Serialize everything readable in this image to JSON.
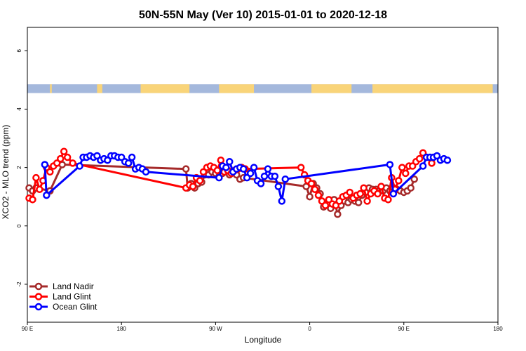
{
  "chart_data": {
    "type": "line",
    "title": "50N-55N May (Ver 10)   2015-01-01 to 2020-12-18",
    "xlabel": "Longitude",
    "ylabel": "XCO2 - MLO trend (ppm)",
    "xlim": [
      -90,
      180
    ],
    "ylim": [
      -3.3,
      6.8
    ],
    "x_ticks": [
      {
        "value": -90,
        "label": "90 E"
      },
      {
        "value": -36,
        "label": "180"
      },
      {
        "value": 18,
        "label": "90 W"
      },
      {
        "value": 72,
        "label": "0"
      },
      {
        "value": 126,
        "label": "90 E"
      },
      {
        "value": 180,
        "label": "180"
      }
    ],
    "y_ticks": [
      {
        "value": -2,
        "label": "-2"
      },
      {
        "value": 0,
        "label": "0"
      },
      {
        "value": 2,
        "label": "2"
      },
      {
        "value": 4,
        "label": "4"
      },
      {
        "value": 6,
        "label": "6"
      }
    ],
    "land_ocean_band": {
      "y_range": [
        4.55,
        4.85
      ],
      "ocean_color": "#a4b8dc",
      "land_color": "#f9d479",
      "land_x": [
        [
          -77,
          -76
        ],
        [
          -50,
          -47
        ],
        [
          -25,
          3
        ],
        [
          20,
          40
        ],
        [
          73,
          96
        ],
        [
          108,
          177
        ]
      ]
    },
    "legend_position": "bottom-left",
    "series": [
      {
        "name": "Land Nadir",
        "color": "#a52a2a",
        "points": [
          [
            -89,
            1.3
          ],
          [
            -87,
            1.2
          ],
          [
            -85,
            1.3
          ],
          [
            -77,
            1.2
          ],
          [
            -70,
            2.1
          ],
          [
            1,
            1.95
          ],
          [
            2,
            1.3
          ],
          [
            4,
            1.45
          ],
          [
            6,
            1.3
          ],
          [
            8,
            1.45
          ],
          [
            10,
            1.5
          ],
          [
            12,
            1.75
          ],
          [
            14,
            1.75
          ],
          [
            16,
            1.85
          ],
          [
            18,
            1.8
          ],
          [
            20,
            1.7
          ],
          [
            22,
            1.8
          ],
          [
            24,
            1.85
          ],
          [
            26,
            1.75
          ],
          [
            28,
            1.85
          ],
          [
            30,
            1.75
          ],
          [
            32,
            1.6
          ],
          [
            34,
            1.65
          ],
          [
            70,
            1.35
          ],
          [
            72,
            1.0
          ],
          [
            74,
            1.45
          ],
          [
            76,
            1.3
          ],
          [
            78,
            1.1
          ],
          [
            80,
            0.65
          ],
          [
            82,
            0.75
          ],
          [
            84,
            0.6
          ],
          [
            86,
            0.9
          ],
          [
            88,
            0.4
          ],
          [
            90,
            0.7
          ],
          [
            92,
            0.85
          ],
          [
            94,
            0.8
          ],
          [
            96,
            0.9
          ],
          [
            98,
            0.85
          ],
          [
            100,
            0.8
          ],
          [
            102,
            1.05
          ],
          [
            104,
            1.15
          ],
          [
            106,
            1.3
          ],
          [
            108,
            1.25
          ],
          [
            110,
            1.25
          ],
          [
            112,
            1.2
          ],
          [
            114,
            1.2
          ],
          [
            116,
            1.3
          ],
          [
            118,
            1.2
          ],
          [
            120,
            1.3
          ],
          [
            122,
            1.25
          ],
          [
            124,
            1.2
          ],
          [
            126,
            1.15
          ],
          [
            128,
            1.2
          ],
          [
            130,
            1.3
          ],
          [
            132,
            1.6
          ]
        ]
      },
      {
        "name": "Land Glint",
        "color": "#ff0000",
        "points": [
          [
            -89,
            0.95
          ],
          [
            -87,
            0.9
          ],
          [
            -85,
            1.65
          ],
          [
            -83,
            1.25
          ],
          [
            -81,
            1.55
          ],
          [
            -79,
            2.0
          ],
          [
            -77,
            1.85
          ],
          [
            -75,
            2.05
          ],
          [
            -73,
            2.15
          ],
          [
            -71,
            2.3
          ],
          [
            -69,
            2.55
          ],
          [
            -67,
            2.35
          ],
          [
            -64,
            2.15
          ],
          [
            1,
            1.3
          ],
          [
            3,
            1.4
          ],
          [
            5,
            1.35
          ],
          [
            7,
            1.65
          ],
          [
            9,
            1.55
          ],
          [
            11,
            1.85
          ],
          [
            13,
            2.0
          ],
          [
            15,
            2.05
          ],
          [
            17,
            2.0
          ],
          [
            19,
            1.9
          ],
          [
            21,
            2.25
          ],
          [
            23,
            1.85
          ],
          [
            25,
            1.9
          ],
          [
            27,
            1.8
          ],
          [
            29,
            1.9
          ],
          [
            31,
            1.95
          ],
          [
            33,
            2.0
          ],
          [
            35,
            1.95
          ],
          [
            67,
            2.0
          ],
          [
            69,
            1.75
          ],
          [
            71,
            1.55
          ],
          [
            73,
            1.45
          ],
          [
            75,
            1.25
          ],
          [
            77,
            1.05
          ],
          [
            79,
            0.85
          ],
          [
            81,
            0.7
          ],
          [
            83,
            0.9
          ],
          [
            85,
            0.75
          ],
          [
            87,
            0.7
          ],
          [
            89,
            0.85
          ],
          [
            91,
            1.0
          ],
          [
            93,
            1.05
          ],
          [
            95,
            1.15
          ],
          [
            97,
            0.95
          ],
          [
            99,
            1.05
          ],
          [
            101,
            1.1
          ],
          [
            103,
            1.3
          ],
          [
            105,
            0.85
          ],
          [
            107,
            1.1
          ],
          [
            109,
            1.2
          ],
          [
            111,
            1.1
          ],
          [
            113,
            1.35
          ],
          [
            115,
            0.95
          ],
          [
            117,
            0.9
          ],
          [
            119,
            1.65
          ],
          [
            121,
            1.25
          ],
          [
            123,
            1.55
          ],
          [
            125,
            2.0
          ],
          [
            127,
            1.8
          ],
          [
            129,
            2.05
          ],
          [
            131,
            2.05
          ],
          [
            133,
            2.2
          ],
          [
            135,
            2.3
          ],
          [
            137,
            2.5
          ],
          [
            139,
            2.35
          ],
          [
            142,
            2.15
          ]
        ]
      },
      {
        "name": "Ocean Glint",
        "color": "#0000ff",
        "points": [
          [
            -80,
            2.1
          ],
          [
            -79,
            1.05
          ],
          [
            -60,
            2.05
          ],
          [
            -58,
            2.35
          ],
          [
            -56,
            2.35
          ],
          [
            -54,
            2.4
          ],
          [
            -52,
            2.35
          ],
          [
            -50,
            2.4
          ],
          [
            -48,
            2.25
          ],
          [
            -46,
            2.3
          ],
          [
            -44,
            2.25
          ],
          [
            -42,
            2.4
          ],
          [
            -40,
            2.4
          ],
          [
            -38,
            2.35
          ],
          [
            -36,
            2.35
          ],
          [
            -34,
            2.2
          ],
          [
            -32,
            2.15
          ],
          [
            -30,
            2.35
          ],
          [
            -28,
            1.95
          ],
          [
            -26,
            2.0
          ],
          [
            -24,
            1.95
          ],
          [
            -22,
            1.85
          ],
          [
            20,
            1.65
          ],
          [
            22,
            2.05
          ],
          [
            24,
            2.0
          ],
          [
            26,
            2.2
          ],
          [
            28,
            1.85
          ],
          [
            30,
            1.95
          ],
          [
            32,
            2.0
          ],
          [
            34,
            1.95
          ],
          [
            36,
            1.65
          ],
          [
            38,
            1.8
          ],
          [
            40,
            2.0
          ],
          [
            42,
            1.55
          ],
          [
            44,
            1.45
          ],
          [
            46,
            1.7
          ],
          [
            48,
            1.95
          ],
          [
            50,
            1.7
          ],
          [
            52,
            1.7
          ],
          [
            54,
            1.35
          ],
          [
            56,
            0.85
          ],
          [
            58,
            1.6
          ],
          [
            118,
            2.1
          ],
          [
            120,
            1.1
          ],
          [
            137,
            2.05
          ],
          [
            139,
            2.35
          ],
          [
            141,
            2.35
          ],
          [
            143,
            2.35
          ],
          [
            145,
            2.4
          ],
          [
            147,
            2.25
          ],
          [
            149,
            2.3
          ],
          [
            151,
            2.25
          ]
        ]
      }
    ]
  }
}
